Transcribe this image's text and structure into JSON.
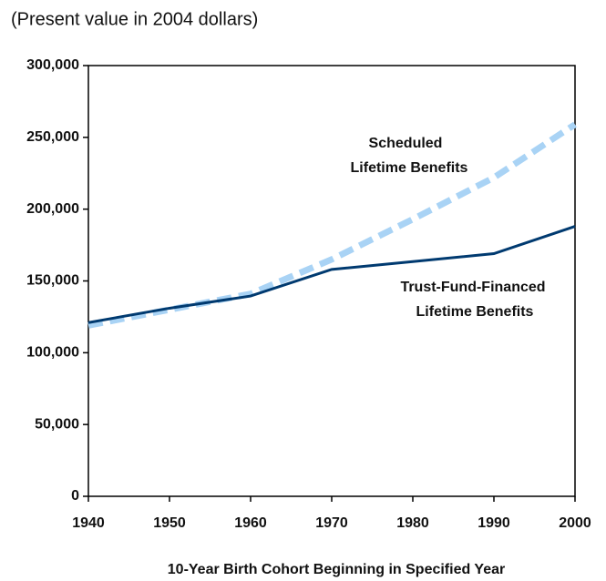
{
  "chart_data": {
    "type": "line",
    "subtitle": "(Present value in 2004 dollars)",
    "x_label": "10-Year Birth Cohort Beginning in Specified Year",
    "x": [
      1940,
      1950,
      1960,
      1970,
      1980,
      1990,
      2000
    ],
    "xlim": [
      1940,
      2000
    ],
    "xticks": [
      1940,
      1950,
      1960,
      1970,
      1980,
      1990,
      2000
    ],
    "ylim": [
      0,
      300000
    ],
    "yticks": [
      0,
      {
        "value": 50000,
        "label": "50,000"
      },
      {
        "value": 100000,
        "label": "100,000"
      },
      {
        "value": 150000,
        "label": "150,000"
      },
      {
        "value": 200000,
        "label": "200,000"
      },
      {
        "value": 250000,
        "label": "250,000"
      },
      {
        "value": 300000,
        "label": "300,000"
      }
    ],
    "series": [
      {
        "label": [
          "Scheduled",
          "Lifetime Benefits"
        ],
        "color": "#a9d3f5",
        "dashed": true,
        "values": [
          119000,
          130000,
          141000,
          165000,
          193000,
          222000,
          259000
        ]
      },
      {
        "label": [
          "Trust-Fund-Financed",
          "Lifetime Benefits"
        ],
        "color": "#003a70",
        "dashed": false,
        "values": [
          121000,
          131000,
          139500,
          158000,
          163500,
          169000,
          188000
        ]
      }
    ]
  }
}
